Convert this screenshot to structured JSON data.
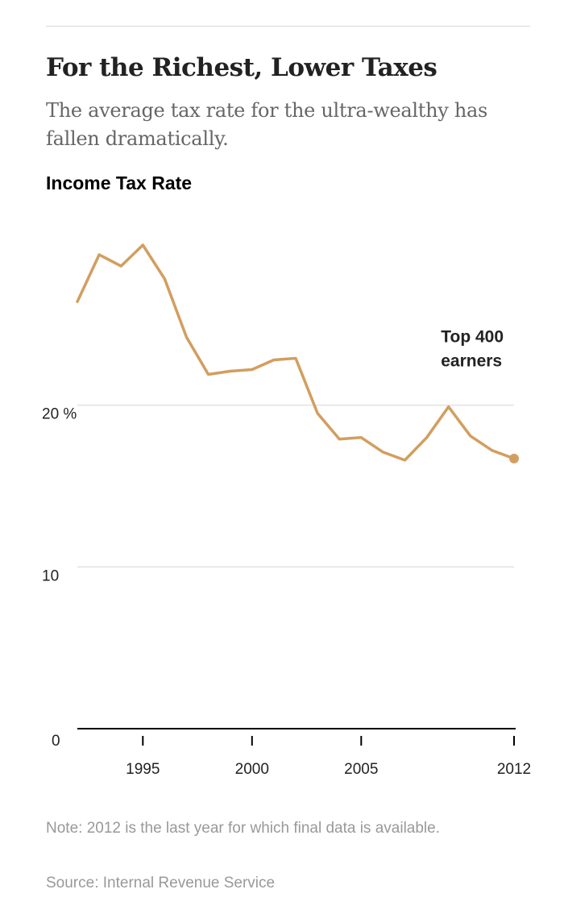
{
  "header": {
    "title": "For the Richest, Lower Taxes",
    "subtitle": "The average tax rate for the ultra-wealthy has fallen dramatically."
  },
  "chart_data": {
    "type": "line",
    "title": "Income Tax Rate",
    "xlabel": "",
    "ylabel": "",
    "x": [
      1992,
      1993,
      1994,
      1995,
      1996,
      1997,
      1998,
      1999,
      2000,
      2001,
      2002,
      2003,
      2004,
      2005,
      2006,
      2007,
      2008,
      2009,
      2010,
      2011,
      2012
    ],
    "series": [
      {
        "name": "Top 400 earners",
        "values": [
          26.4,
          29.3,
          28.6,
          29.9,
          27.8,
          24.2,
          21.9,
          22.1,
          22.2,
          22.8,
          22.9,
          19.5,
          17.9,
          18.0,
          17.1,
          16.6,
          18.0,
          19.9,
          18.1,
          17.2,
          16.7
        ],
        "color": "#d29e5f"
      }
    ],
    "xlim": [
      1992,
      2012
    ],
    "ylim": [
      0,
      30
    ],
    "x_ticks": [
      {
        "value": 1995,
        "label": "1995"
      },
      {
        "value": 2000,
        "label": "2000"
      },
      {
        "value": 2005,
        "label": "2005"
      },
      {
        "value": 2012,
        "label": "2012"
      }
    ],
    "y_ticks": [
      {
        "value": 0,
        "label": "0"
      },
      {
        "value": 10,
        "label": "10"
      },
      {
        "value": 20,
        "label": "20 %"
      }
    ],
    "annotation": {
      "text_lines": [
        "Top 400",
        "earners"
      ],
      "x": 2010.2,
      "y": 20.8
    },
    "end_marker": true,
    "grid": true
  },
  "footer": {
    "note": "Note: 2012 is the last year for which final data is available.",
    "source": "Source: Internal Revenue Service"
  }
}
